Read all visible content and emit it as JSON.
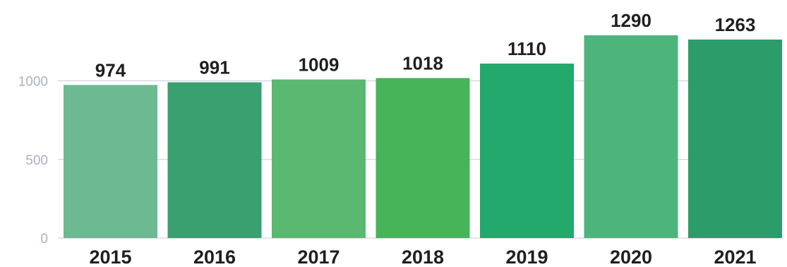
{
  "chart_data": {
    "type": "bar",
    "categories": [
      "2015",
      "2016",
      "2017",
      "2018",
      "2019",
      "2020",
      "2021"
    ],
    "values": [
      974,
      991,
      1009,
      1018,
      1110,
      1290,
      1263
    ],
    "data_labels": [
      "974",
      "991",
      "1009",
      "1018",
      "1110",
      "1290",
      "1263"
    ],
    "bar_colors": [
      "#6db992",
      "#3aa070",
      "#5bb870",
      "#47b45a",
      "#22a96b",
      "#4db57c",
      "#2c9c6a"
    ],
    "y_ticks": [
      0,
      500,
      1000
    ],
    "y_tick_labels": [
      "0",
      "500",
      "1000"
    ],
    "ylim": [
      0,
      1400
    ],
    "grid": true,
    "legend": "none"
  }
}
